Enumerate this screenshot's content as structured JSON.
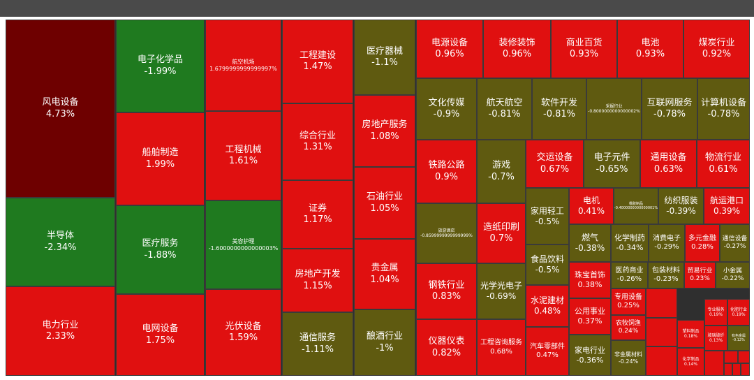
{
  "chart_data": {
    "type": "treemap",
    "colors": {
      "strong_up": "#6e0000",
      "up": "#e01010",
      "down": "#1f7a1f",
      "flat_down": "#5f5a10"
    },
    "items": [
      {
        "name": "风电设备",
        "value_label": "4.73%",
        "value": 4.73
      },
      {
        "name": "半导体",
        "value_label": "-2.34%",
        "value": -2.34
      },
      {
        "name": "电力行业",
        "value_label": "2.33%",
        "value": 2.33
      },
      {
        "name": "电子化学品",
        "value_label": "-1.99%",
        "value": -1.99
      },
      {
        "name": "船舶制造",
        "value_label": "1.99%",
        "value": 1.99
      },
      {
        "name": "医疗服务",
        "value_label": "-1.88%",
        "value": -1.88
      },
      {
        "name": "电网设备",
        "value_label": "1.75%",
        "value": 1.75
      },
      {
        "name": "航空机场",
        "value_label": "1.6799999999999997%",
        "value": 1.68
      },
      {
        "name": "工程机械",
        "value_label": "1.61%",
        "value": 1.61
      },
      {
        "name": "美容护理",
        "value_label": "-1.6000000000000003%",
        "value": -1.6
      },
      {
        "name": "光伏设备",
        "value_label": "1.59%",
        "value": 1.59
      },
      {
        "name": "工程建设",
        "value_label": "1.47%",
        "value": 1.47
      },
      {
        "name": "综合行业",
        "value_label": "1.31%",
        "value": 1.31
      },
      {
        "name": "证券",
        "value_label": "1.17%",
        "value": 1.17
      },
      {
        "name": "房地产开发",
        "value_label": "1.15%",
        "value": 1.15
      },
      {
        "name": "通信服务",
        "value_label": "-1.11%",
        "value": -1.11
      },
      {
        "name": "医疗器械",
        "value_label": "-1.1%",
        "value": -1.1
      },
      {
        "name": "房地产服务",
        "value_label": "1.08%",
        "value": 1.08
      },
      {
        "name": "石油行业",
        "value_label": "1.05%",
        "value": 1.05
      },
      {
        "name": "贵金属",
        "value_label": "1.04%",
        "value": 1.04
      },
      {
        "name": "酿酒行业",
        "value_label": "-1%",
        "value": -1
      },
      {
        "name": "电源设备",
        "value_label": "0.96%",
        "value": 0.96
      },
      {
        "name": "装修装饰",
        "value_label": "0.96%",
        "value": 0.96
      },
      {
        "name": "商业百货",
        "value_label": "0.93%",
        "value": 0.93
      },
      {
        "name": "电池",
        "value_label": "0.93%",
        "value": 0.93
      },
      {
        "name": "煤炭行业",
        "value_label": "0.92%",
        "value": 0.92
      },
      {
        "name": "文化传媒",
        "value_label": "-0.9%",
        "value": -0.9
      },
      {
        "name": "航天航空",
        "value_label": "-0.81%",
        "value": -0.81
      },
      {
        "name": "软件开发",
        "value_label": "-0.81%",
        "value": -0.81
      },
      {
        "name": "采掘行业",
        "value_label": "-0.8000000000000002%",
        "value": -0.8
      },
      {
        "name": "互联网服务",
        "value_label": "-0.78%",
        "value": -0.78
      },
      {
        "name": "计算机设备",
        "value_label": "-0.78%",
        "value": -0.78
      },
      {
        "name": "铁路公路",
        "value_label": "0.9%",
        "value": 0.9
      },
      {
        "name": "游戏",
        "value_label": "-0.7%",
        "value": -0.7
      },
      {
        "name": "交运设备",
        "value_label": "0.67%",
        "value": 0.67
      },
      {
        "name": "电子元件",
        "value_label": "-0.65%",
        "value": -0.65
      },
      {
        "name": "通用设备",
        "value_label": "0.63%",
        "value": 0.63
      },
      {
        "name": "物流行业",
        "value_label": "0.61%",
        "value": 0.61
      },
      {
        "name": "旅游酒店",
        "value_label": "-0.8599999999999999%",
        "value": -0.86
      },
      {
        "name": "造纸印刷",
        "value_label": "0.7%",
        "value": 0.7
      },
      {
        "name": "家用轻工",
        "value_label": "-0.5%",
        "value": -0.5
      },
      {
        "name": "电机",
        "value_label": "0.41%",
        "value": 0.41
      },
      {
        "name": "橡胶制品",
        "value_label": "-0.4000000000000001%",
        "value": -0.4
      },
      {
        "name": "纺织服装",
        "value_label": "-0.39%",
        "value": -0.39
      },
      {
        "name": "航运港口",
        "value_label": "0.39%",
        "value": 0.39
      },
      {
        "name": "食品饮料",
        "value_label": "-0.5%",
        "value": -0.5
      },
      {
        "name": "燃气",
        "value_label": "-0.38%",
        "value": -0.38
      },
      {
        "name": "化学制药",
        "value_label": "-0.34%",
        "value": -0.34
      },
      {
        "name": "消费电子",
        "value_label": "-0.29%",
        "value": -0.29
      },
      {
        "name": "多元金融",
        "value_label": "0.28%",
        "value": 0.28
      },
      {
        "name": "通信设备",
        "value_label": "-0.27%",
        "value": -0.27
      },
      {
        "name": "钢铁行业",
        "value_label": "0.83%",
        "value": 0.83
      },
      {
        "name": "光学光电子",
        "value_label": "-0.69%",
        "value": -0.69
      },
      {
        "name": "水泥建材",
        "value_label": "0.48%",
        "value": 0.48
      },
      {
        "name": "珠宝首饰",
        "value_label": "0.38%",
        "value": 0.38
      },
      {
        "name": "医药商业",
        "value_label": "-0.26%",
        "value": -0.26
      },
      {
        "name": "包装材料",
        "value_label": "-0.23%",
        "value": -0.23
      },
      {
        "name": "贸易行业",
        "value_label": "0.23%",
        "value": 0.23
      },
      {
        "name": "小金属",
        "value_label": "-0.22%",
        "value": -0.22
      },
      {
        "name": "公用事业",
        "value_label": "0.37%",
        "value": 0.37
      },
      {
        "name": "专用设备",
        "value_label": "0.25%",
        "value": 0.25
      },
      {
        "name": "仪器仪表",
        "value_label": "0.82%",
        "value": 0.82
      },
      {
        "name": "工程咨询服务",
        "value_label": "0.68%",
        "value": 0.68
      },
      {
        "name": "汽车零部件",
        "value_label": "0.47%",
        "value": 0.47
      },
      {
        "name": "农牧饲渔",
        "value_label": "0.24%",
        "value": 0.24
      },
      {
        "name": "家电行业",
        "value_label": "-0.36%",
        "value": -0.36
      },
      {
        "name": "非金属材料",
        "value_label": "-0.24%",
        "value": -0.24
      },
      {
        "name": "专业服务",
        "value_label": "0.19%",
        "value": 0.19
      },
      {
        "name": "化肥行业",
        "value_label": "0.19%",
        "value": 0.19
      },
      {
        "name": "玻璃玻纤",
        "value_label": "0.13%",
        "value": 0.13
      },
      {
        "name": "有色金属",
        "value_label": "-0.12%",
        "value": -0.12
      },
      {
        "name": "塑料制品",
        "value_label": "0.18%",
        "value": 0.18
      },
      {
        "name": "化学制品",
        "value_label": "0.14%",
        "value": 0.14
      }
    ]
  }
}
